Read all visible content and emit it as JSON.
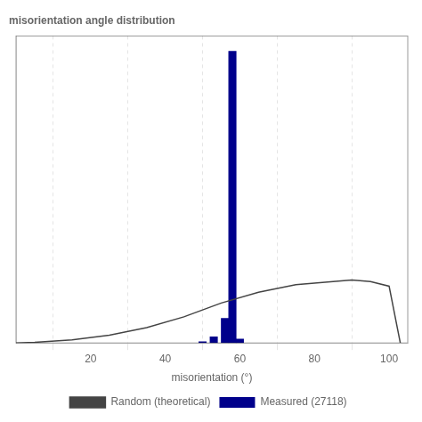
{
  "chart_data": {
    "type": "bar",
    "title": "misorientation angle distribution",
    "xlabel": "misorientation (°)",
    "xlim": [
      0,
      105
    ],
    "ylim": [
      0,
      1.0
    ],
    "xticks": [
      20,
      40,
      60,
      80,
      100
    ],
    "grid": true,
    "legend": "bottom",
    "tick_labels": "x",
    "series": [
      {
        "name": "Measured (27118)",
        "type": "bar",
        "color": "#00008B",
        "x": [
          50,
          53,
          56,
          58,
          60
        ],
        "values": [
          0.004,
          0.02,
          0.08,
          0.95,
          0.013
        ]
      },
      {
        "name": "Random (theoretical)",
        "type": "line",
        "color": "#444444",
        "x": [
          0,
          5,
          15,
          25,
          35,
          45,
          55,
          65,
          75,
          85,
          90,
          95,
          100,
          103
        ],
        "values": [
          0.0,
          0.002,
          0.01,
          0.025,
          0.05,
          0.085,
          0.13,
          0.165,
          0.19,
          0.2,
          0.205,
          0.2,
          0.185,
          0.0
        ]
      }
    ]
  }
}
